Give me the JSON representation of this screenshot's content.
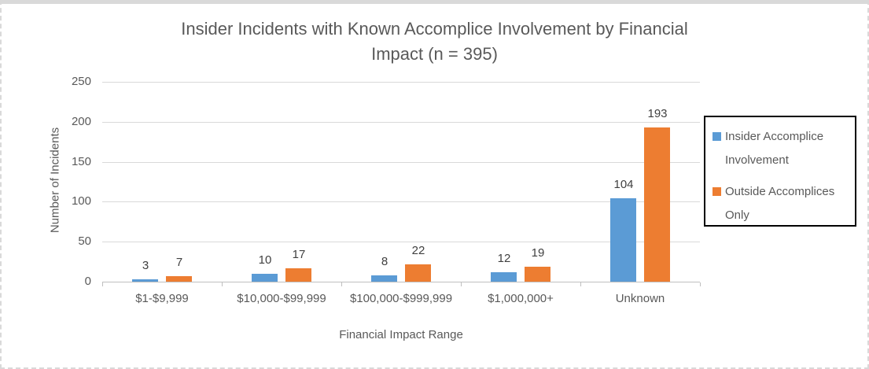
{
  "chart_data": {
    "type": "bar",
    "title": "Insider Incidents with Known Accomplice Involvement by Financial Impact (n = 395)",
    "title_lines": [
      "Insider Incidents with Known Accomplice Involvement by Financial",
      "Impact (n = 395)"
    ],
    "xlabel": "Financial Impact Range",
    "ylabel": "Number of Incidents",
    "categories": [
      "$1-$9,999",
      "$10,000-$99,999",
      "$100,000-$999,999",
      "$1,000,000+",
      "Unknown"
    ],
    "series": [
      {
        "name": "Insider Accomplice Involvement",
        "color": "#5B9BD5",
        "values": [
          3,
          10,
          8,
          12,
          104
        ]
      },
      {
        "name": "Outside Accomplices Only",
        "color": "#ED7D31",
        "values": [
          7,
          17,
          22,
          19,
          193
        ]
      }
    ],
    "ylim": [
      0,
      250
    ],
    "yticks": [
      0,
      50,
      100,
      150,
      200,
      250
    ],
    "grid": true,
    "legend_position": "right"
  },
  "colors": {
    "series_blue": "#5B9BD5",
    "series_orange": "#ED7D31",
    "text": "#595959",
    "data_label": "#404040",
    "gridline": "#D9D9D9",
    "axis_line": "#BFBFBF",
    "legend_border": "#000000",
    "frame": "#D9D9D9",
    "background": "#FFFFFF"
  }
}
